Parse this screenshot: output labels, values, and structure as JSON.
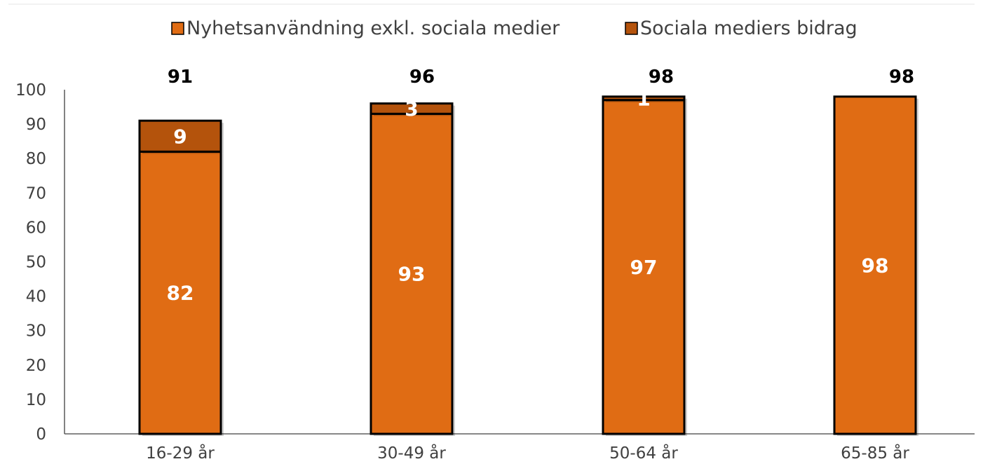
{
  "chart_data": {
    "type": "bar",
    "stacked": true,
    "categories": [
      "16-29 år",
      "30-49 år",
      "50-64 år",
      "65-85 år"
    ],
    "series": [
      {
        "name": "Nyhetsanvändning exkl. sociala medier",
        "values": [
          82,
          93,
          97,
          98
        ],
        "color": "#E06C14"
      },
      {
        "name": "Sociala mediers bidrag",
        "values": [
          9,
          3,
          1,
          0
        ],
        "color": "#B4530C"
      }
    ],
    "totals": [
      91,
      96,
      98,
      98
    ],
    "ylim": [
      0,
      100
    ],
    "yticks": [
      0,
      10,
      20,
      30,
      40,
      50,
      60,
      70,
      80,
      90,
      100
    ],
    "legend_position": "top",
    "grid": false
  }
}
